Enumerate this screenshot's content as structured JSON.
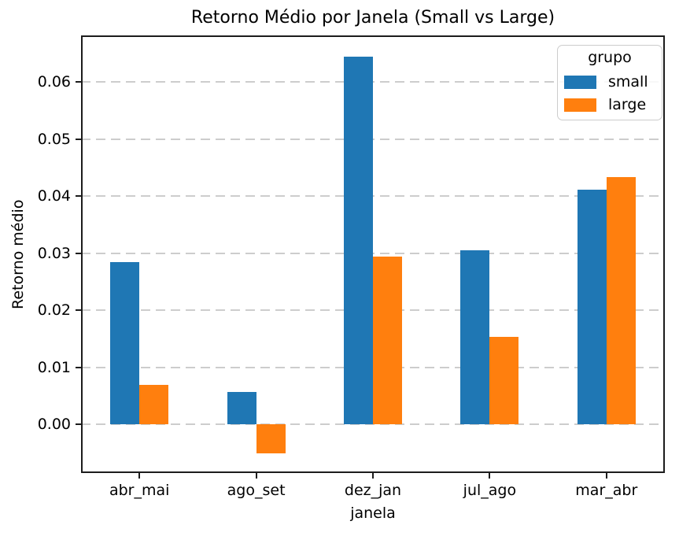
{
  "chart_data": {
    "type": "bar",
    "title": "Retorno Médio por Janela (Small vs Large)",
    "xlabel": "janela",
    "ylabel": "Retorno médio",
    "legend_title": "grupo",
    "legend_position": "upper right",
    "categories": [
      "abr_mai",
      "ago_set",
      "dez_jan",
      "jul_ago",
      "mar_abr"
    ],
    "series": [
      {
        "name": "small",
        "color": "#1f77b4",
        "values": [
          0.0284,
          0.0057,
          0.0645,
          0.0305,
          0.0411
        ]
      },
      {
        "name": "large",
        "color": "#ff7f0e",
        "values": [
          0.007,
          -0.0051,
          0.0295,
          0.0154,
          0.0433
        ]
      }
    ],
    "yticks": [
      0.0,
      0.01,
      0.02,
      0.03,
      0.04,
      0.05,
      0.06
    ],
    "ytick_labels": [
      "0.00",
      "0.01",
      "0.02",
      "0.03",
      "0.04",
      "0.05",
      "0.06"
    ],
    "ylim": [
      -0.00851,
      0.0682
    ],
    "grid": "horizontal-dashed",
    "bar_group_fraction": 0.5
  },
  "colors": {
    "background": "#ffffff",
    "spine": "#1c1c1c",
    "grid": "#cdcdcd",
    "text": "#000000",
    "legend_border": "#cccccc"
  }
}
